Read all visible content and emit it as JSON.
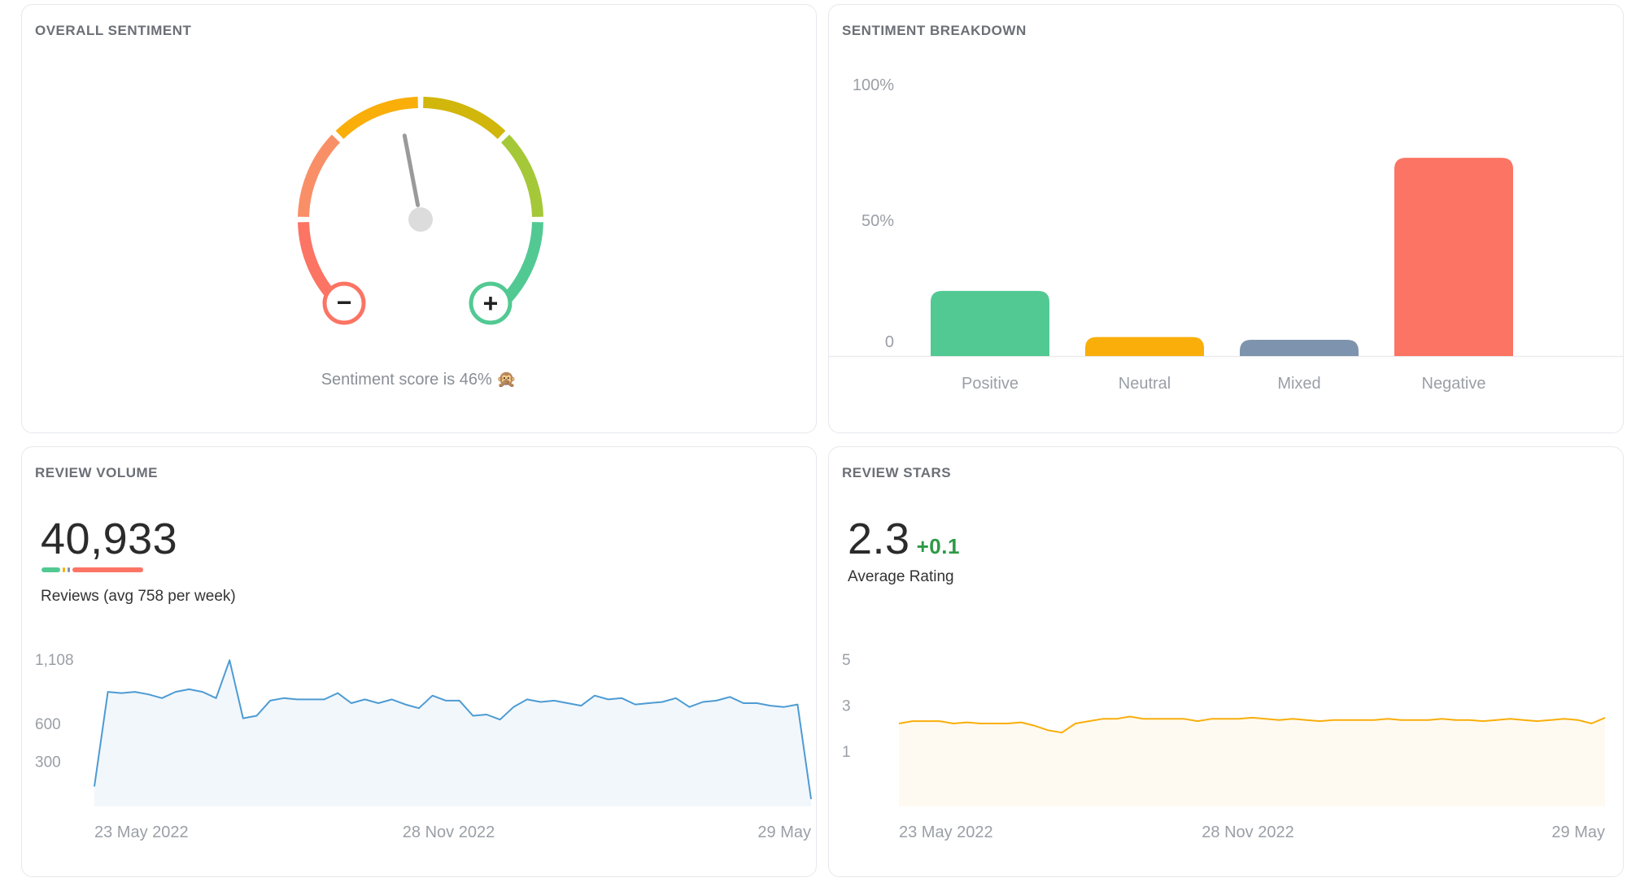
{
  "colors": {
    "positive": "#52c993",
    "neutral": "#f9ae0a",
    "mixed": "#7e93ad",
    "negative": "#fb7464",
    "line_blue": "#4d9bd3",
    "fill_blue": "#f2f7fc",
    "line_orange": "#f9ae0a",
    "fill_orange": "#fffaf1",
    "delta_green": "#2e9a45"
  },
  "sentiment": {
    "title": "OVERALL SENTIMENT",
    "caption": "Sentiment score is 46% 🙊",
    "score_percent": 46,
    "minus_symbol": "−",
    "plus_symbol": "+"
  },
  "breakdown": {
    "title": "SENTIMENT BREAKDOWN"
  },
  "volume": {
    "title": "REVIEW VOLUME",
    "total": "40,933",
    "subtitle": "Reviews (avg 758 per week)",
    "legend_share": {
      "positive": 0.2,
      "neutral": 0.05,
      "mixed": 0.05,
      "negative": 0.7
    }
  },
  "stars": {
    "title": "REVIEW STARS",
    "average": "2.3",
    "delta": "+0.1",
    "subtitle": "Average Rating"
  },
  "chart_data": [
    {
      "id": "breakdown",
      "type": "bar",
      "title": "SENTIMENT BREAKDOWN",
      "categories": [
        "Positive",
        "Neutral",
        "Mixed",
        "Negative"
      ],
      "values": [
        24,
        7,
        6,
        73
      ],
      "ylim": [
        0,
        100
      ],
      "yticks": [
        {
          "value": 0,
          "label": "0"
        },
        {
          "value": 50,
          "label": "50%"
        },
        {
          "value": 100,
          "label": "100%"
        }
      ],
      "colors": [
        "#52c993",
        "#f9ae0a",
        "#7e93ad",
        "#fb7464"
      ]
    },
    {
      "id": "volume",
      "type": "area",
      "title": "REVIEW VOLUME",
      "ylim": [
        0,
        1108
      ],
      "yticks": [
        {
          "value": 300,
          "label": "300"
        },
        {
          "value": 600,
          "label": "600"
        },
        {
          "value": 1108,
          "label": "1,108"
        }
      ],
      "xtick_labels": [
        "23 May 2022",
        "28 Nov 2022",
        "29 May"
      ],
      "values": [
        100,
        850,
        840,
        850,
        830,
        800,
        850,
        870,
        850,
        800,
        1100,
        640,
        660,
        780,
        800,
        790,
        790,
        790,
        840,
        760,
        790,
        760,
        790,
        750,
        720,
        820,
        780,
        780,
        660,
        670,
        630,
        730,
        790,
        770,
        780,
        760,
        740,
        820,
        790,
        800,
        750,
        760,
        770,
        800,
        730,
        770,
        780,
        810,
        760,
        760,
        740,
        730,
        750,
        0
      ]
    },
    {
      "id": "stars",
      "type": "area",
      "title": "REVIEW STARS",
      "ylim": [
        0,
        5
      ],
      "yticks": [
        {
          "value": 1,
          "label": "1"
        },
        {
          "value": 3,
          "label": "3"
        },
        {
          "value": 5,
          "label": "5"
        }
      ],
      "xtick_labels": [
        "23 May 2022",
        "28 Nov 2022",
        "29 May"
      ],
      "values": [
        2.2,
        2.3,
        2.3,
        2.3,
        2.2,
        2.25,
        2.2,
        2.2,
        2.2,
        2.25,
        2.1,
        1.9,
        1.8,
        2.2,
        2.3,
        2.4,
        2.4,
        2.5,
        2.4,
        2.4,
        2.4,
        2.4,
        2.3,
        2.4,
        2.4,
        2.4,
        2.45,
        2.4,
        2.35,
        2.4,
        2.35,
        2.3,
        2.35,
        2.35,
        2.35,
        2.35,
        2.4,
        2.35,
        2.35,
        2.35,
        2.4,
        2.35,
        2.35,
        2.3,
        2.35,
        2.4,
        2.35,
        2.3,
        2.35,
        2.4,
        2.35,
        2.2,
        2.45
      ]
    }
  ]
}
